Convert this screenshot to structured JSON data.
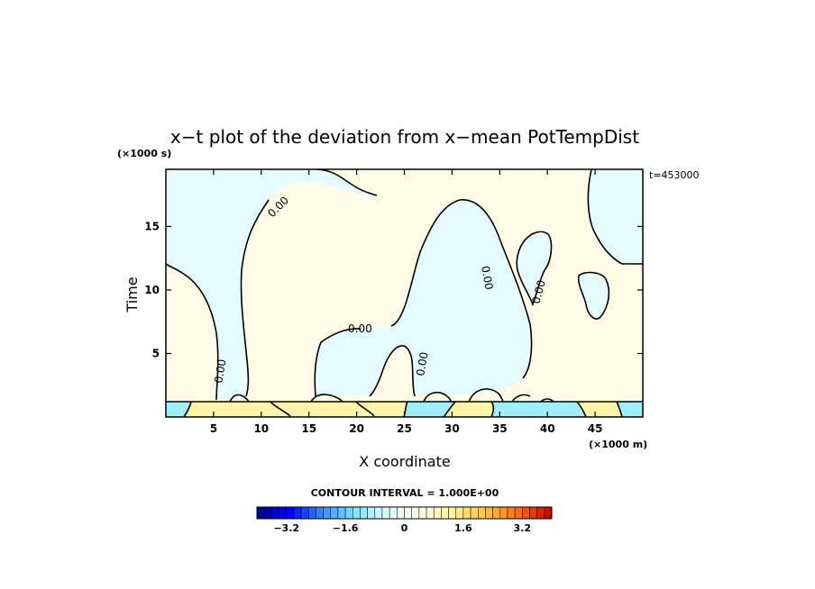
{
  "chart_data": {
    "type": "heatmap",
    "title": "x−t plot of the deviation from x−mean PotTempDist",
    "time_stamp": "t=453000",
    "xlabel": "X coordinate",
    "xunit": "(×1000 m)",
    "ylabel": "Time",
    "yunit": "(×1000 s)",
    "xlim": [
      0,
      50
    ],
    "ylim": [
      0,
      19.5
    ],
    "xticks": [
      5,
      10,
      15,
      20,
      25,
      30,
      35,
      40,
      45
    ],
    "xtick_labels": [
      "5",
      "10",
      "15",
      "20",
      "25",
      "30",
      "35",
      "40",
      "45"
    ],
    "yticks": [
      5,
      10,
      15
    ],
    "ytick_labels": [
      "5",
      "10",
      "15"
    ],
    "contour_interval_label": "CONTOUR INTERVAL = 1.000E+00",
    "contour_level_label": "0.00",
    "colorbar": {
      "min": -4,
      "max": 4,
      "n_bins": 40,
      "tick_values": [
        -3.2,
        -1.6,
        0,
        1.6,
        3.2
      ],
      "tick_labels": [
        "−3.2",
        "−1.6",
        "0",
        "1.6",
        "3.2"
      ],
      "stops": [
        "#00008b",
        "#0000ff",
        "#3a8cff",
        "#7fe4ff",
        "#e4fdff",
        "#fffde8",
        "#fff39a",
        "#ffc040",
        "#ff6a10",
        "#c00000"
      ]
    },
    "region_colors": {
      "negative_near_zero": "#e6fbff",
      "positive_near_zero": "#fffbe6",
      "strong_negative": "#9eeefc",
      "strong_positive": "#fff4a8"
    }
  }
}
